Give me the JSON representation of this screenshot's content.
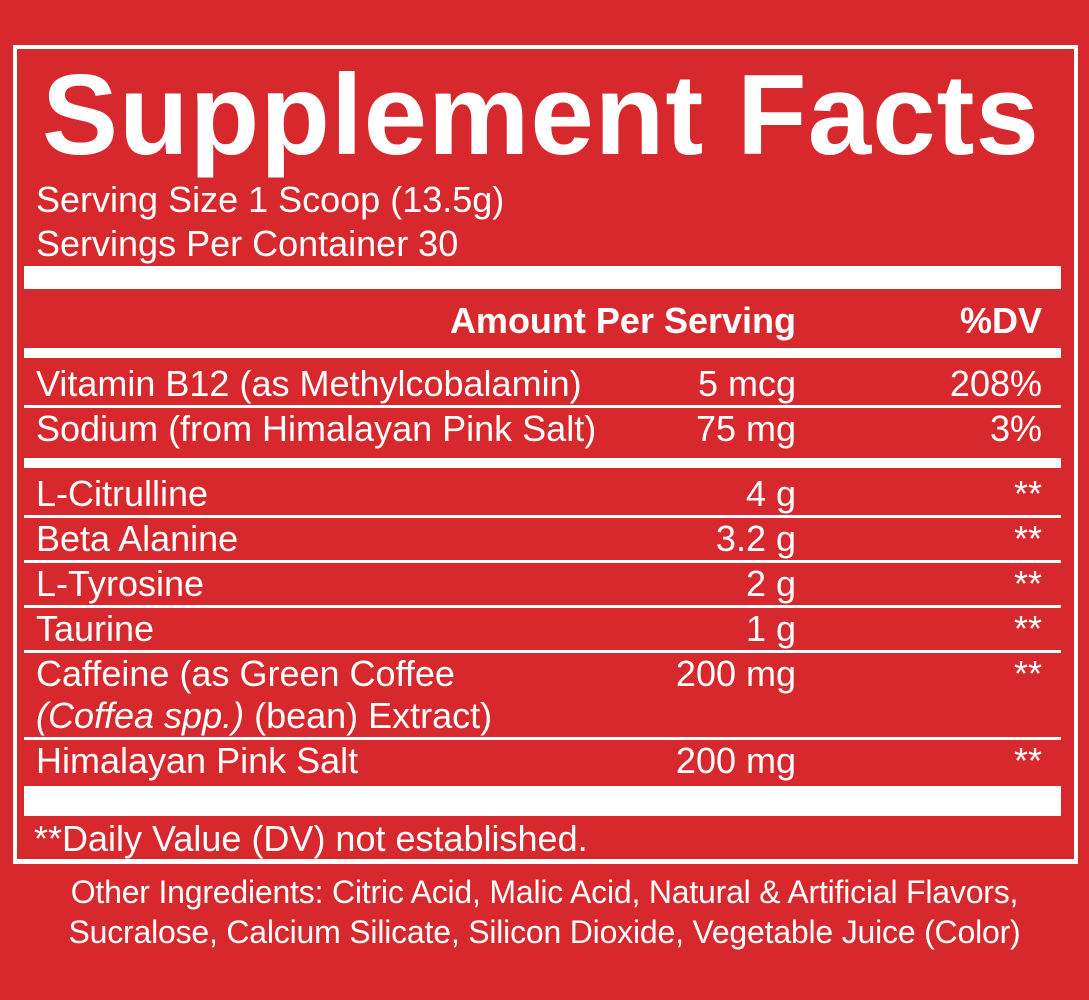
{
  "colors": {
    "background_red": "#d6282d",
    "foreground_white": "#ffffff"
  },
  "title": "Supplement Facts",
  "serving": {
    "size": "Serving Size 1 Scoop (13.5g)",
    "per_container": "Servings Per Container 30"
  },
  "table": {
    "amount_header": "Amount Per Serving",
    "dv_header": "%DV",
    "daily_rows": [
      {
        "name": "Vitamin B12 (as Methylcobalamin)",
        "amount": "5 mcg",
        "dv": "208%"
      },
      {
        "name": "Sodium (from Himalayan Pink Salt)",
        "amount": "75 mg",
        "dv": "3%"
      }
    ],
    "blend_rows": [
      {
        "name": "L-Citrulline",
        "amount": "4 g",
        "dv": "**"
      },
      {
        "name": "Beta Alanine",
        "amount": "3.2 g",
        "dv": "**"
      },
      {
        "name": "L-Tyrosine",
        "amount": "2 g",
        "dv": "**"
      },
      {
        "name": "Taurine",
        "amount": "1 g",
        "dv": "**"
      }
    ],
    "caffeine_row": {
      "name_line1": "Caffeine (as Green Coffee",
      "name_line2_italic": "(Coffea spp.)",
      "name_line2_rest": " (bean) Extract)",
      "amount": "200 mg",
      "dv": "**"
    },
    "last_row": {
      "name": "Himalayan Pink Salt",
      "amount": "200 mg",
      "dv": "**"
    },
    "footnote": "**Daily Value (DV) not established."
  },
  "other_ingredients": {
    "line1": "Other Ingredients: Citric Acid, Malic Acid, Natural & Artificial Flavors,",
    "line2": "Sucralose, Calcium Silicate, Silicon Dioxide, Vegetable Juice (Color)"
  }
}
